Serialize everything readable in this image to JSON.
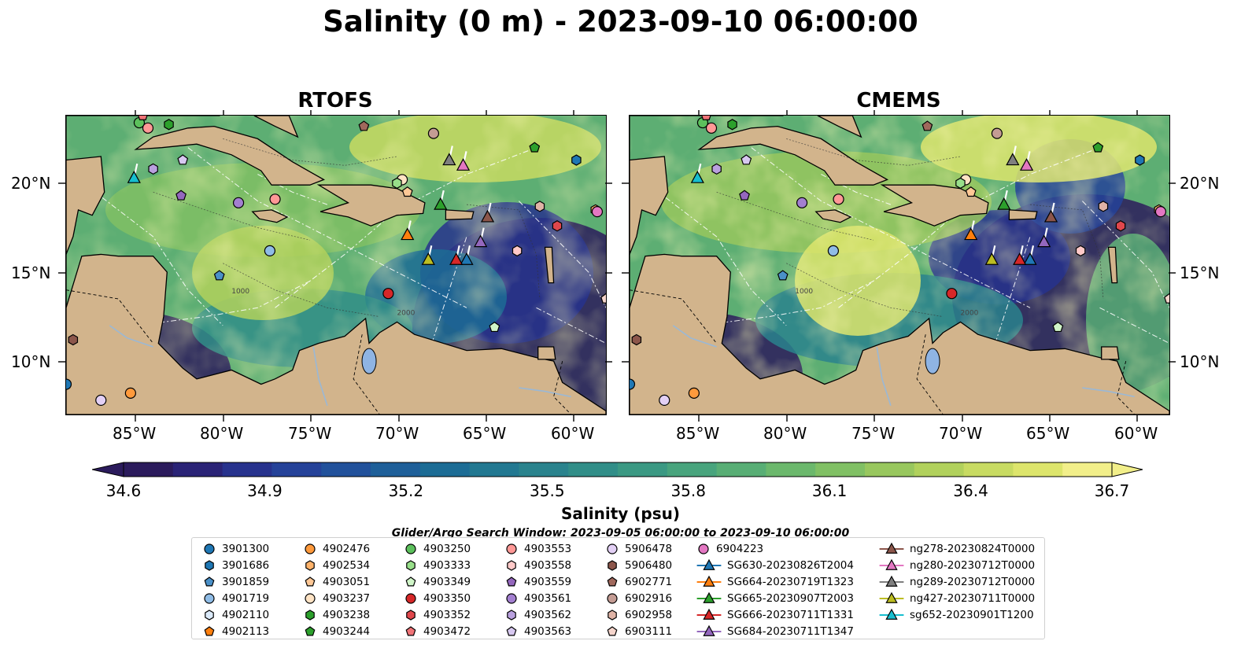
{
  "figure": {
    "title": "Salinity (0 m) - 2023-09-10 06:00:00",
    "panels": [
      {
        "title": "RTOFS"
      },
      {
        "title": "CMEMS"
      }
    ],
    "lon_ticks": [
      "85°W",
      "80°W",
      "75°W",
      "70°W",
      "65°W",
      "60°W"
    ],
    "lat_ticks": [
      "20°N",
      "15°N",
      "10°N"
    ],
    "contour_labels": [
      "1000",
      "2000"
    ]
  },
  "colorbar": {
    "label": "Salinity (psu)",
    "min": 34.6,
    "max": 36.7,
    "ticks": [
      "34.6",
      "34.9",
      "35.2",
      "35.5",
      "35.8",
      "36.1",
      "36.4",
      "36.7"
    ],
    "colors": [
      "#2b1b5c",
      "#2a2376",
      "#27328d",
      "#254299",
      "#21519b",
      "#1e5f99",
      "#1c6c95",
      "#227891",
      "#2a838d",
      "#318e88",
      "#3b9983",
      "#48a47d",
      "#58ae75",
      "#6bb86c",
      "#80c064",
      "#98c75e",
      "#b1d15c",
      "#c8db62",
      "#dde56c",
      "#f2ef8a"
    ],
    "land_color": "#d2b48c"
  },
  "search_window": "Glider/Argo Search Window: 2023-09-05 06:00:00 to 2023-09-10 06:00:00",
  "legend": {
    "columns": [
      [
        {
          "label": "3901300",
          "marker": "circle",
          "color": "#1f77b4"
        },
        {
          "label": "3901686",
          "marker": "hexagon",
          "color": "#1f77b4"
        },
        {
          "label": "3901859",
          "marker": "pentagon",
          "color": "#4a90c8"
        },
        {
          "label": "4901719",
          "marker": "circle",
          "color": "#8fbce6"
        },
        {
          "label": "4902110",
          "marker": "hexagon",
          "color": "#dbeafa"
        },
        {
          "label": "4902113",
          "marker": "pentagon",
          "color": "#ff7f0e"
        }
      ],
      [
        {
          "label": "4902476",
          "marker": "circle",
          "color": "#ff9a3c"
        },
        {
          "label": "4902534",
          "marker": "hexagon",
          "color": "#ffb36b"
        },
        {
          "label": "4903051",
          "marker": "pentagon",
          "color": "#ffc896"
        },
        {
          "label": "4903237",
          "marker": "circle",
          "color": "#ffe3c4"
        },
        {
          "label": "4903238",
          "marker": "hexagon",
          "color": "#2ca02c"
        },
        {
          "label": "4903244",
          "marker": "pentagon",
          "color": "#2ca02c"
        }
      ],
      [
        {
          "label": "4903250",
          "marker": "circle",
          "color": "#5cc05c"
        },
        {
          "label": "4903333",
          "marker": "hexagon",
          "color": "#98df8a"
        },
        {
          "label": "4903349",
          "marker": "pentagon",
          "color": "#d0f5c8"
        },
        {
          "label": "4903350",
          "marker": "circle",
          "color": "#d62728"
        },
        {
          "label": "4903352",
          "marker": "hexagon",
          "color": "#e0474c"
        },
        {
          "label": "4903472",
          "marker": "pentagon",
          "color": "#f07377"
        }
      ],
      [
        {
          "label": "4903553",
          "marker": "circle",
          "color": "#ff9896"
        },
        {
          "label": "4903558",
          "marker": "hexagon",
          "color": "#ffc9c8"
        },
        {
          "label": "4903559",
          "marker": "pentagon",
          "color": "#9467bd"
        },
        {
          "label": "4903561",
          "marker": "circle",
          "color": "#a37fd0"
        },
        {
          "label": "4903562",
          "marker": "hexagon",
          "color": "#b9a0de"
        },
        {
          "label": "4903563",
          "marker": "pentagon",
          "color": "#d7c8f0"
        }
      ],
      [
        {
          "label": "5906478",
          "marker": "circle",
          "color": "#e3d0f5"
        },
        {
          "label": "5906480",
          "marker": "hexagon",
          "color": "#8c564b"
        },
        {
          "label": "6902771",
          "marker": "pentagon",
          "color": "#a0685c"
        },
        {
          "label": "6902916",
          "marker": "circle",
          "color": "#c49c94"
        },
        {
          "label": "6902958",
          "marker": "hexagon",
          "color": "#dfb3a6"
        },
        {
          "label": "6903111",
          "marker": "pentagon",
          "color": "#f5d5cc"
        }
      ],
      [
        {
          "label": "6904223",
          "marker": "circle",
          "color": "#e377c2"
        },
        {
          "label": "SG630-20230826T2004",
          "marker": "triangle-line",
          "color": "#1f77b4"
        },
        {
          "label": "SG664-20230719T1323",
          "marker": "triangle-line",
          "color": "#ff7f0e"
        },
        {
          "label": "SG665-20230907T2003",
          "marker": "triangle-line",
          "color": "#2ca02c"
        },
        {
          "label": "SG666-20230711T1331",
          "marker": "triangle-line",
          "color": "#d62728"
        },
        {
          "label": "SG684-20230711T1347",
          "marker": "triangle-line",
          "color": "#9467bd"
        }
      ],
      [
        {
          "label": "ng278-20230824T0000",
          "marker": "triangle-line",
          "color": "#8c564b"
        },
        {
          "label": "ng280-20230712T0000",
          "marker": "triangle-line",
          "color": "#e377c2"
        },
        {
          "label": "ng289-20230712T0000",
          "marker": "triangle-line",
          "color": "#7f7f7f"
        },
        {
          "label": "ng427-20230711T0000",
          "marker": "triangle-line",
          "color": "#bcbd22"
        },
        {
          "label": "sg652-20230901T1200",
          "marker": "triangle-line",
          "color": "#17becf"
        }
      ]
    ]
  },
  "map": {
    "lon_range": [
      -89,
      -58
    ],
    "lat_range": [
      7,
      23.8
    ],
    "markers": [
      {
        "id": "3901300",
        "lon": -89.0,
        "lat": 8.7
      },
      {
        "id": "3901686",
        "lon": -59.7,
        "lat": 21.3
      },
      {
        "id": "3901859",
        "lon": -80.2,
        "lat": 14.8
      },
      {
        "id": "4901719",
        "lon": -77.3,
        "lat": 16.2
      },
      {
        "id": "4903051",
        "lon": -69.4,
        "lat": 19.5
      },
      {
        "id": "4903237",
        "lon": -69.7,
        "lat": 20.2
      },
      {
        "id": "4903238",
        "lon": -83.1,
        "lat": 23.3
      },
      {
        "id": "4903244",
        "lon": -62.1,
        "lat": 22.0
      },
      {
        "id": "4903250",
        "lon": -84.8,
        "lat": 23.4
      },
      {
        "id": "4903333",
        "lon": -70.0,
        "lat": 20.0
      },
      {
        "id": "4903349",
        "lon": -64.4,
        "lat": 11.9
      },
      {
        "id": "4903350",
        "lon": -70.5,
        "lat": 13.8
      },
      {
        "id": "4903352",
        "lon": -60.8,
        "lat": 17.6
      },
      {
        "id": "4903472",
        "lon": -84.6,
        "lat": 23.8
      },
      {
        "id": "4903553",
        "lon": -84.3,
        "lat": 23.1
      },
      {
        "id": "4903558",
        "lon": -63.1,
        "lat": 16.2
      },
      {
        "id": "4903559",
        "lon": -82.4,
        "lat": 19.3
      },
      {
        "id": "4903561",
        "lon": -79.1,
        "lat": 18.9
      },
      {
        "id": "4903562",
        "lon": -84.0,
        "lat": 20.8
      },
      {
        "id": "4903563",
        "lon": -82.3,
        "lat": 21.3
      },
      {
        "id": "5906478",
        "lon": -87.0,
        "lat": 7.8
      },
      {
        "id": "5906480",
        "lon": -88.6,
        "lat": 11.2
      },
      {
        "id": "6902771",
        "lon": -71.9,
        "lat": 23.2
      },
      {
        "id": "6902916",
        "lon": -67.9,
        "lat": 22.8
      },
      {
        "id": "6902958",
        "lon": -61.8,
        "lat": 18.7
      },
      {
        "id": "6903111",
        "lon": -58.0,
        "lat": 13.5
      },
      {
        "id": "4902476",
        "lon": -85.3,
        "lat": 8.2
      },
      {
        "id": "4902534",
        "lon": -58.6,
        "lat": 18.5
      },
      {
        "id": "4903553b",
        "lon": -77.0,
        "lat": 19.1
      },
      {
        "id": "6904223",
        "lon": -58.5,
        "lat": 18.4
      }
    ],
    "tracks": [
      {
        "id": "SG630-20230826T2004",
        "lon": -66.0,
        "lat": 15.7
      },
      {
        "id": "SG664-20230719T1323",
        "lon": -69.4,
        "lat": 17.1
      },
      {
        "id": "SG665-20230907T2003",
        "lon": -67.5,
        "lat": 18.8
      },
      {
        "id": "SG666-20230711T1331",
        "lon": -66.6,
        "lat": 15.7
      },
      {
        "id": "SG684-20230711T1347",
        "lon": -65.2,
        "lat": 16.7
      },
      {
        "id": "ng278-20230824T0000",
        "lon": -64.8,
        "lat": 18.1
      },
      {
        "id": "ng280-20230712T0000",
        "lon": -66.2,
        "lat": 21.0
      },
      {
        "id": "ng289-20230712T0000",
        "lon": -67.0,
        "lat": 21.3
      },
      {
        "id": "ng427-20230711T0000",
        "lon": -68.2,
        "lat": 15.7
      },
      {
        "id": "sg652-20230901T1200",
        "lon": -85.1,
        "lat": 20.3
      }
    ]
  }
}
